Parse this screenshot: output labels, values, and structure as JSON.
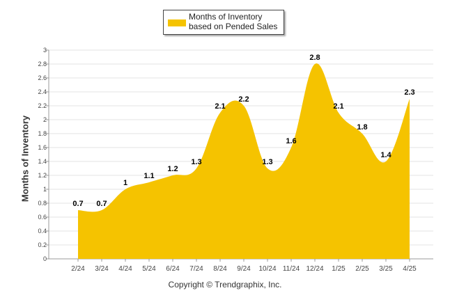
{
  "chart_data": {
    "type": "area",
    "categories": [
      "2/24",
      "3/24",
      "4/24",
      "5/24",
      "6/24",
      "7/24",
      "8/24",
      "9/24",
      "10/24",
      "11/24",
      "12/24",
      "1/25",
      "2/25",
      "3/25",
      "4/25"
    ],
    "series": [
      {
        "name": "Months of Inventory based on Pended Sales",
        "values": [
          0.7,
          0.7,
          1,
          1.1,
          1.2,
          1.3,
          2.1,
          2.2,
          1.3,
          1.6,
          2.8,
          2.1,
          1.8,
          1.4,
          2.3
        ],
        "value_labels": [
          "0.7",
          "0.7",
          "1",
          "1.1",
          "1.2",
          "1.3",
          "2.1",
          "2.2",
          "1.3",
          "1.6",
          "2.8",
          "2.1",
          "1.8",
          "1.4",
          "2.3"
        ]
      }
    ],
    "ylabel": "Months of Inventory",
    "ylim": [
      0,
      3
    ],
    "yticks": [
      "0",
      "0.2",
      "0.4",
      "0.6",
      "0.8",
      "1",
      "1.2",
      "1.4",
      "1.6",
      "1.8",
      "2",
      "2.2",
      "2.4",
      "2.6",
      "2.8",
      "3"
    ],
    "grid": true,
    "legend_placement": "top-center",
    "fill_color": "#F5C300"
  },
  "legend": {
    "label": "Months of Inventory based on Pended Sales"
  },
  "footer": {
    "copyright": "Copyright © Trendgraphix, Inc."
  }
}
